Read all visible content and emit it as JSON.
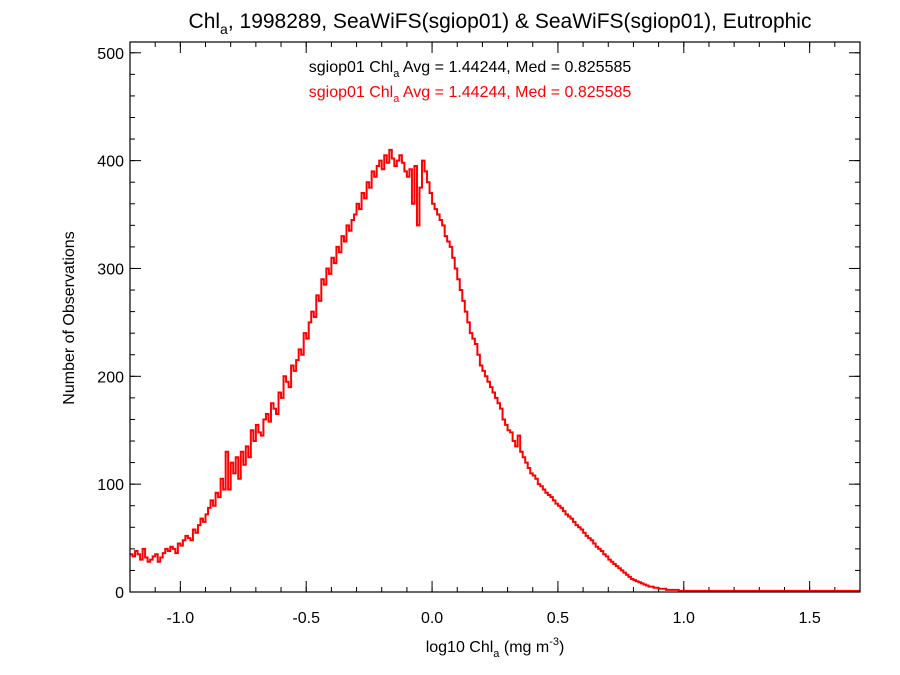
{
  "chart_data": {
    "type": "histogram",
    "title": {
      "main": "Chl",
      "main_sub": "a",
      "rest": ", 1998289, SeaWiFS(sgiop01) & SeaWiFS(sgiop01), Eutrophic"
    },
    "xlabel": {
      "pre": "log10 Chl",
      "sub": "a",
      "mid": " (mg m",
      "sup": "-3",
      "post": ")"
    },
    "ylabel": "Number of Observations",
    "xlim": [
      -1.2,
      1.7
    ],
    "ylim": [
      0,
      510
    ],
    "xticks": [
      -1.0,
      -0.5,
      0.0,
      0.5,
      1.0,
      1.5
    ],
    "xtick_labels": [
      "-1.0",
      "-0.5",
      "0.0",
      "0.5",
      "1.0",
      "1.5"
    ],
    "yticks": [
      0,
      100,
      200,
      300,
      400,
      500
    ],
    "ytick_labels": [
      "0",
      "100",
      "200",
      "300",
      "400",
      "500"
    ],
    "grid": false,
    "annotations": [
      {
        "pre": "sgiop01 Chl",
        "sub": "a",
        "post": " Avg = 1.44244, Med = 0.825585",
        "color": "#000000"
      },
      {
        "pre": "sgiop01 Chl",
        "sub": "a",
        "post": " Avg = 1.44244, Med = 0.825585",
        "color": "#ff0000"
      }
    ],
    "series": [
      {
        "color": "#ff0000",
        "bin_width": 0.01,
        "x_start": -1.2,
        "values": [
          35,
          33,
          38,
          35,
          30,
          40,
          32,
          28,
          30,
          33,
          35,
          28,
          32,
          36,
          40,
          38,
          42,
          40,
          36,
          45,
          43,
          48,
          52,
          50,
          48,
          58,
          55,
          62,
          68,
          65,
          72,
          78,
          85,
          80,
          92,
          88,
          105,
          95,
          130,
          95,
          120,
          110,
          125,
          105,
          130,
          118,
          135,
          125,
          150,
          140,
          155,
          148,
          145,
          160,
          165,
          158,
          175,
          170,
          165,
          185,
          180,
          200,
          195,
          190,
          210,
          205,
          215,
          225,
          220,
          240,
          235,
          250,
          260,
          255,
          275,
          270,
          290,
          285,
          300,
          295,
          310,
          305,
          320,
          315,
          330,
          325,
          340,
          335,
          345,
          350,
          360,
          355,
          370,
          365,
          380,
          375,
          390,
          385,
          395,
          400,
          392,
          405,
          398,
          410,
          402,
          395,
          400,
          405,
          398,
          390,
          385,
          392,
          360,
          395,
          340,
          375,
          400,
          390,
          380,
          370,
          360,
          355,
          350,
          345,
          340,
          330,
          325,
          320,
          310,
          300,
          290,
          280,
          270,
          260,
          250,
          240,
          235,
          230,
          220,
          210,
          205,
          200,
          195,
          190,
          185,
          180,
          175,
          170,
          160,
          155,
          150,
          148,
          140,
          135,
          145,
          130,
          125,
          120,
          115,
          110,
          108,
          105,
          100,
          98,
          95,
          92,
          90,
          88,
          85,
          82,
          80,
          78,
          75,
          72,
          70,
          68,
          65,
          62,
          60,
          58,
          55,
          52,
          50,
          48,
          45,
          42,
          40,
          38,
          35,
          33,
          30,
          28,
          26,
          24,
          22,
          20,
          18,
          16,
          14,
          12,
          11,
          10,
          9,
          8,
          7,
          6,
          5,
          5,
          4,
          4,
          3,
          3,
          3,
          2,
          2,
          2,
          2,
          2,
          1,
          1,
          1,
          1,
          1,
          1,
          1,
          1,
          1,
          1,
          1,
          1,
          1,
          1,
          1,
          1,
          1,
          1,
          1,
          1,
          1,
          1,
          1,
          1,
          1,
          1,
          1,
          1,
          1,
          1,
          1,
          1,
          1,
          1,
          1,
          1,
          1,
          1,
          1,
          1,
          1,
          1,
          1,
          1,
          1,
          1,
          1,
          1,
          1,
          1,
          1,
          1,
          1,
          1,
          1,
          1,
          1,
          1,
          1,
          1,
          1,
          1,
          1,
          1,
          1,
          1,
          1,
          1,
          1,
          1,
          1,
          1
        ]
      }
    ]
  }
}
